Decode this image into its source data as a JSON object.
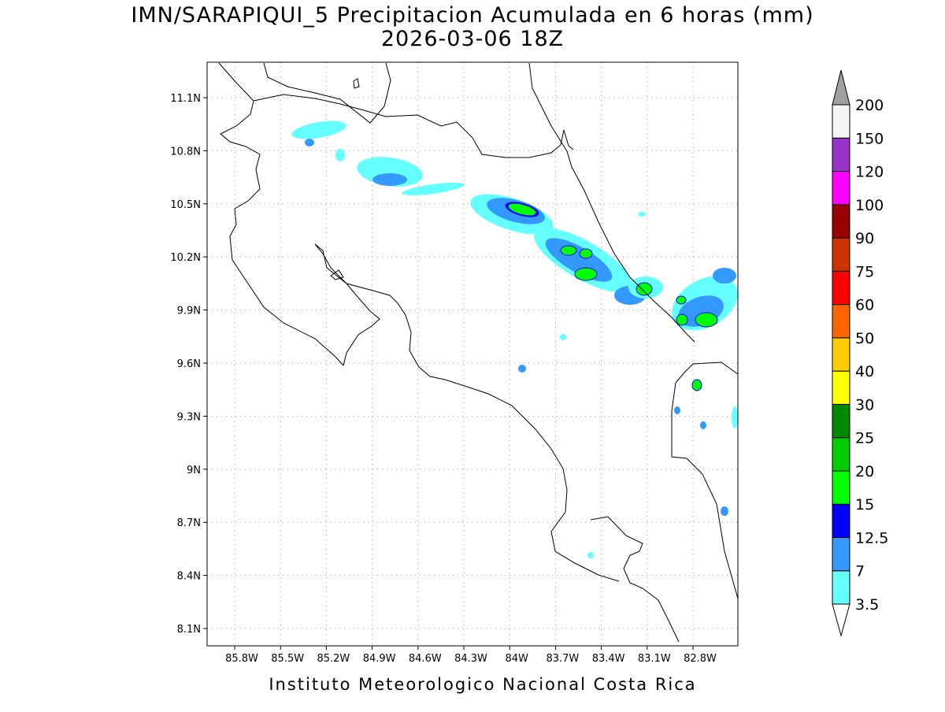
{
  "title": "IMN/SARAPIQUI_5 Precipitacion Acumulada en 6 horas (mm)",
  "subtitle": "2026-03-06 18Z",
  "footer": "Instituto Meteorologico Nacional Costa Rica",
  "longitude_ticks": [
    "85.8W",
    "85.5W",
    "85.2W",
    "84.9W",
    "84.6W",
    "84.3W",
    "84W",
    "83.7W",
    "83.4W",
    "83.1W",
    "82.8W"
  ],
  "latitude_ticks": [
    "11.1N",
    "10.8N",
    "10.5N",
    "10.2N",
    "9.9N",
    "9.6N",
    "9.3N",
    "9N",
    "8.7N",
    "8.4N",
    "8.1N"
  ],
  "legend": {
    "labels": [
      "3.5",
      "7",
      "12.5",
      "15",
      "20",
      "25",
      "30",
      "40",
      "50",
      "60",
      "75",
      "90",
      "100",
      "120",
      "150",
      "200"
    ],
    "colors": [
      "#ffffff",
      "#66ffff",
      "#3399ff",
      "#0000ff",
      "#00ff00",
      "#00cc00",
      "#008800",
      "#ffff00",
      "#ffcc00",
      "#ff6600",
      "#ff0000",
      "#cc3300",
      "#990000",
      "#ff00ff",
      "#9933cc",
      "#f5f5f5",
      "#a0a0a0"
    ]
  }
}
